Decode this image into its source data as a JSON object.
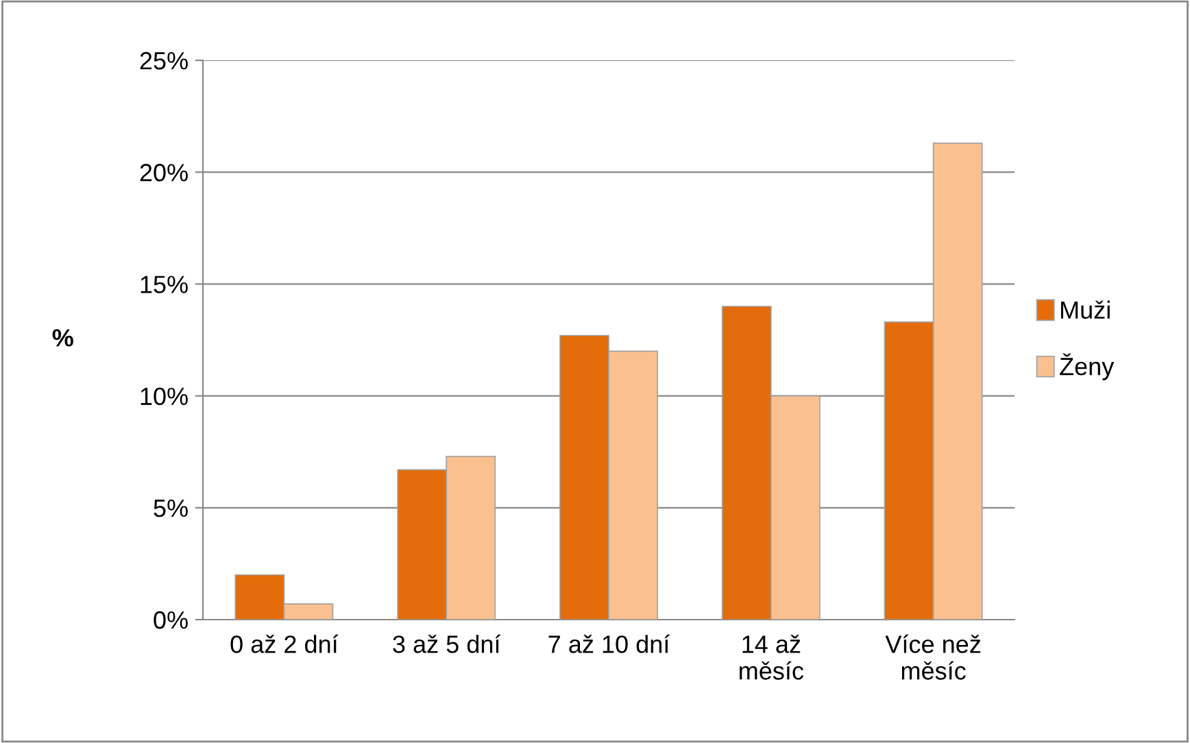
{
  "chart_data": {
    "type": "bar",
    "ylabel": "%",
    "categories": [
      "0 až 2 dní",
      "3 až 5 dní",
      "7 až 10 dní",
      "14 až\nměsíc",
      "Více než\nměsíc"
    ],
    "series": [
      {
        "name": "Muži",
        "color": "#e46c0a",
        "values": [
          2.0,
          6.7,
          12.7,
          14.0,
          13.3
        ]
      },
      {
        "name": "Ženy",
        "color": "#fac090",
        "values": [
          0.7,
          7.3,
          12.0,
          10.0,
          21.3
        ]
      }
    ],
    "ylim": [
      0,
      25
    ],
    "yticks": [
      {
        "value": 0,
        "label": "0%"
      },
      {
        "value": 5,
        "label": "5%"
      },
      {
        "value": 10,
        "label": "10%"
      },
      {
        "value": 15,
        "label": "15%"
      },
      {
        "value": 20,
        "label": "20%"
      },
      {
        "value": 25,
        "label": "25%"
      }
    ],
    "grid": "y",
    "legend": "right"
  }
}
